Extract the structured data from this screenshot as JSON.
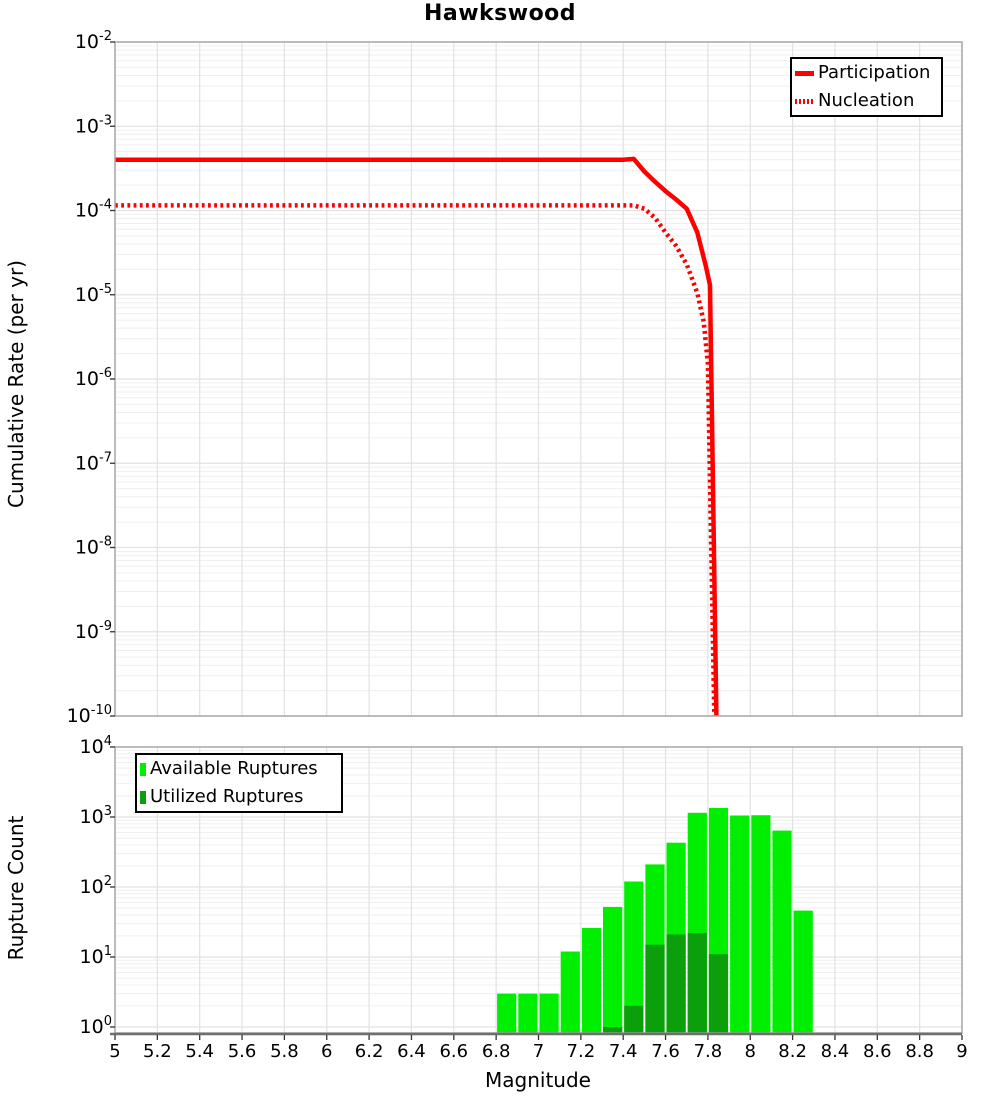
{
  "figure": {
    "title": "Hawkswood"
  },
  "top_chart": {
    "ylabel": "Cumulative Rate (per yr)",
    "y_tick_base": "10",
    "y_tick_exponents": [
      "-2",
      "-3",
      "-4",
      "-5",
      "-6",
      "-7",
      "-8",
      "-9",
      "-10"
    ],
    "legend": {
      "position": "top-right",
      "items": [
        {
          "label": "Participation",
          "style": "solid-line",
          "color": "#FF0000"
        },
        {
          "label": "Nucleation",
          "style": "dotted-line",
          "color": "#FF0000"
        }
      ]
    }
  },
  "bottom_chart": {
    "ylabel": "Rupture Count",
    "xlabel": "Magnitude",
    "y_tick_base": "10",
    "y_tick_exponents": [
      "4",
      "3",
      "2",
      "1",
      "0"
    ],
    "x_tick_labels": [
      "5",
      "5.2",
      "5.4",
      "5.6",
      "5.8",
      "6",
      "6.2",
      "6.4",
      "6.6",
      "6.8",
      "7",
      "7.2",
      "7.4",
      "7.6",
      "7.8",
      "8",
      "8.2",
      "8.4",
      "8.6",
      "8.8",
      "9"
    ],
    "legend": {
      "position": "top-left",
      "items": [
        {
          "label": "Available Ruptures",
          "style": "square",
          "color": "#00EE00"
        },
        {
          "label": "Utilized Ruptures",
          "style": "square",
          "color": "#0BA00B"
        }
      ]
    }
  },
  "colors": {
    "line_red": "#FF0000",
    "available_green": "#00EE00",
    "utilized_green": "#0BA00B",
    "grid_minor": "#EFEFEF",
    "grid_major": "#E2E2E2",
    "plot_border": "#A5A5A5",
    "axis_dark": "#6E6E6E",
    "tick": "#333333"
  },
  "chart_data": [
    {
      "type": "line",
      "title": "Hawkswood",
      "ylabel": "Cumulative Rate (per yr)",
      "xlim": [
        5,
        9
      ],
      "ylim": [
        1e-10,
        0.01
      ],
      "yscale": "log",
      "grid": true,
      "legend_position": "top-right",
      "series": [
        {
          "name": "Participation",
          "color": "#FF0000",
          "line_style": "solid",
          "points": [
            [
              5.0,
              0.0004
            ],
            [
              5.5,
              0.0004
            ],
            [
              6.0,
              0.0004
            ],
            [
              6.5,
              0.0004
            ],
            [
              7.0,
              0.0004
            ],
            [
              7.4,
              0.0004
            ],
            [
              7.45,
              0.00041
            ],
            [
              7.5,
              0.00029
            ],
            [
              7.55,
              0.00022
            ],
            [
              7.6,
              0.00017
            ],
            [
              7.65,
              0.000135
            ],
            [
              7.7,
              0.000105
            ],
            [
              7.75,
              5.5e-05
            ],
            [
              7.79,
              2.2e-05
            ],
            [
              7.81,
              1.3e-05
            ],
            [
              7.84,
              1e-10
            ]
          ]
        },
        {
          "name": "Nucleation",
          "color": "#FF0000",
          "line_style": "dotted",
          "points": [
            [
              5.0,
              0.000115
            ],
            [
              5.5,
              0.000115
            ],
            [
              6.0,
              0.000115
            ],
            [
              6.5,
              0.000115
            ],
            [
              7.0,
              0.000115
            ],
            [
              7.45,
              0.000115
            ],
            [
              7.5,
              0.000105
            ],
            [
              7.55,
              8.2e-05
            ],
            [
              7.6,
              5.5e-05
            ],
            [
              7.65,
              3.8e-05
            ],
            [
              7.7,
              2.3e-05
            ],
            [
              7.75,
              1.05e-05
            ],
            [
              7.78,
              4.8e-06
            ],
            [
              7.8,
              1.5e-06
            ],
            [
              7.83,
              1e-10
            ]
          ]
        }
      ]
    },
    {
      "type": "bar",
      "ylabel": "Rupture Count",
      "xlabel": "Magnitude",
      "xlim": [
        5,
        9
      ],
      "ylim": [
        1,
        10000
      ],
      "yscale": "log",
      "grid": true,
      "bin_width": 0.1,
      "legend_position": "top-left",
      "series": [
        {
          "name": "Available Ruptures",
          "color": "#00EE00",
          "bins": [
            [
              6.8,
              3
            ],
            [
              6.9,
              3
            ],
            [
              7.0,
              3
            ],
            [
              7.1,
              12
            ],
            [
              7.2,
              26
            ],
            [
              7.3,
              52
            ],
            [
              7.4,
              120
            ],
            [
              7.5,
              210
            ],
            [
              7.6,
              430
            ],
            [
              7.7,
              1150
            ],
            [
              7.8,
              1350
            ],
            [
              7.9,
              1050
            ],
            [
              8.0,
              1060
            ],
            [
              8.1,
              640
            ],
            [
              8.2,
              46
            ]
          ]
        },
        {
          "name": "Utilized Ruptures",
          "color": "#0BA00B",
          "bins": [
            [
              7.3,
              1
            ],
            [
              7.4,
              2
            ],
            [
              7.5,
              15
            ],
            [
              7.6,
              21
            ],
            [
              7.7,
              22
            ],
            [
              7.8,
              11
            ]
          ]
        }
      ]
    }
  ]
}
